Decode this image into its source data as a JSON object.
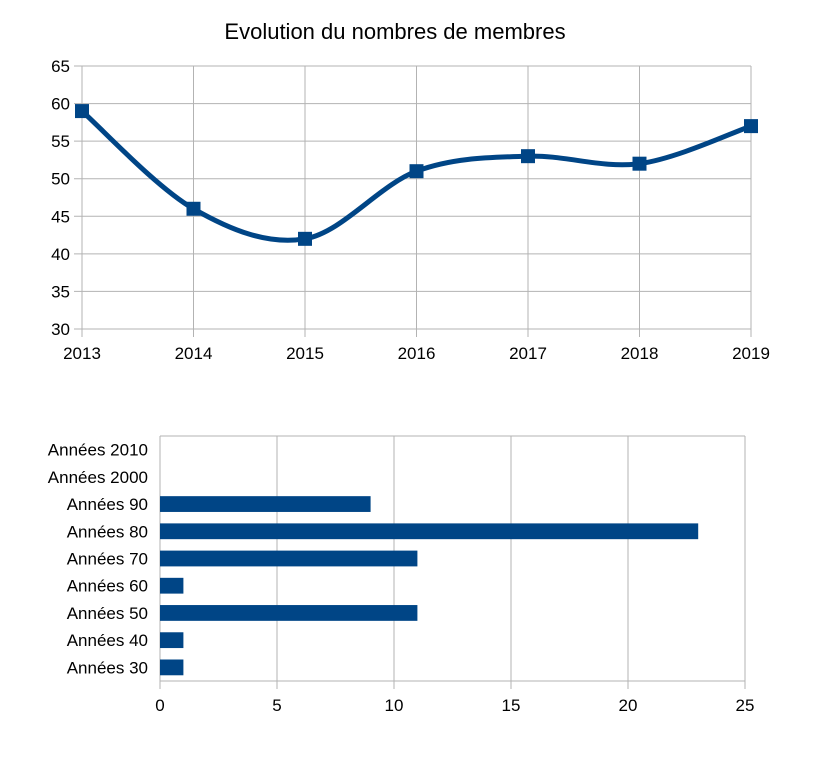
{
  "chart_data": [
    {
      "type": "line",
      "title": "Evolution du nombres de membres",
      "xlabel": "",
      "ylabel": "",
      "x": [
        "2013",
        "2014",
        "2015",
        "2016",
        "2017",
        "2018",
        "2019"
      ],
      "series": [
        {
          "values": [
            59,
            46,
            42,
            51,
            53,
            52,
            57
          ]
        }
      ],
      "ylim": [
        30,
        65
      ],
      "yticks": [
        "30",
        "35",
        "40",
        "45",
        "50",
        "55",
        "60",
        "65"
      ],
      "grid": true,
      "smooth": true,
      "marker": "square",
      "color": "#004586"
    },
    {
      "type": "bar",
      "orientation": "horizontal",
      "title": "",
      "xlabel": "",
      "ylabel": "",
      "categories": [
        "Années 2010",
        "Années 2000",
        "Années 90",
        "Années 80",
        "Années 70",
        "Années 60",
        "Années 50",
        "Années 40",
        "Années 30"
      ],
      "values": [
        0,
        0,
        9,
        23,
        11,
        1,
        11,
        1,
        1
      ],
      "xlim": [
        0,
        25
      ],
      "xticks": [
        "0",
        "5",
        "10",
        "15",
        "20",
        "25"
      ],
      "grid": true,
      "color": "#004586"
    }
  ]
}
